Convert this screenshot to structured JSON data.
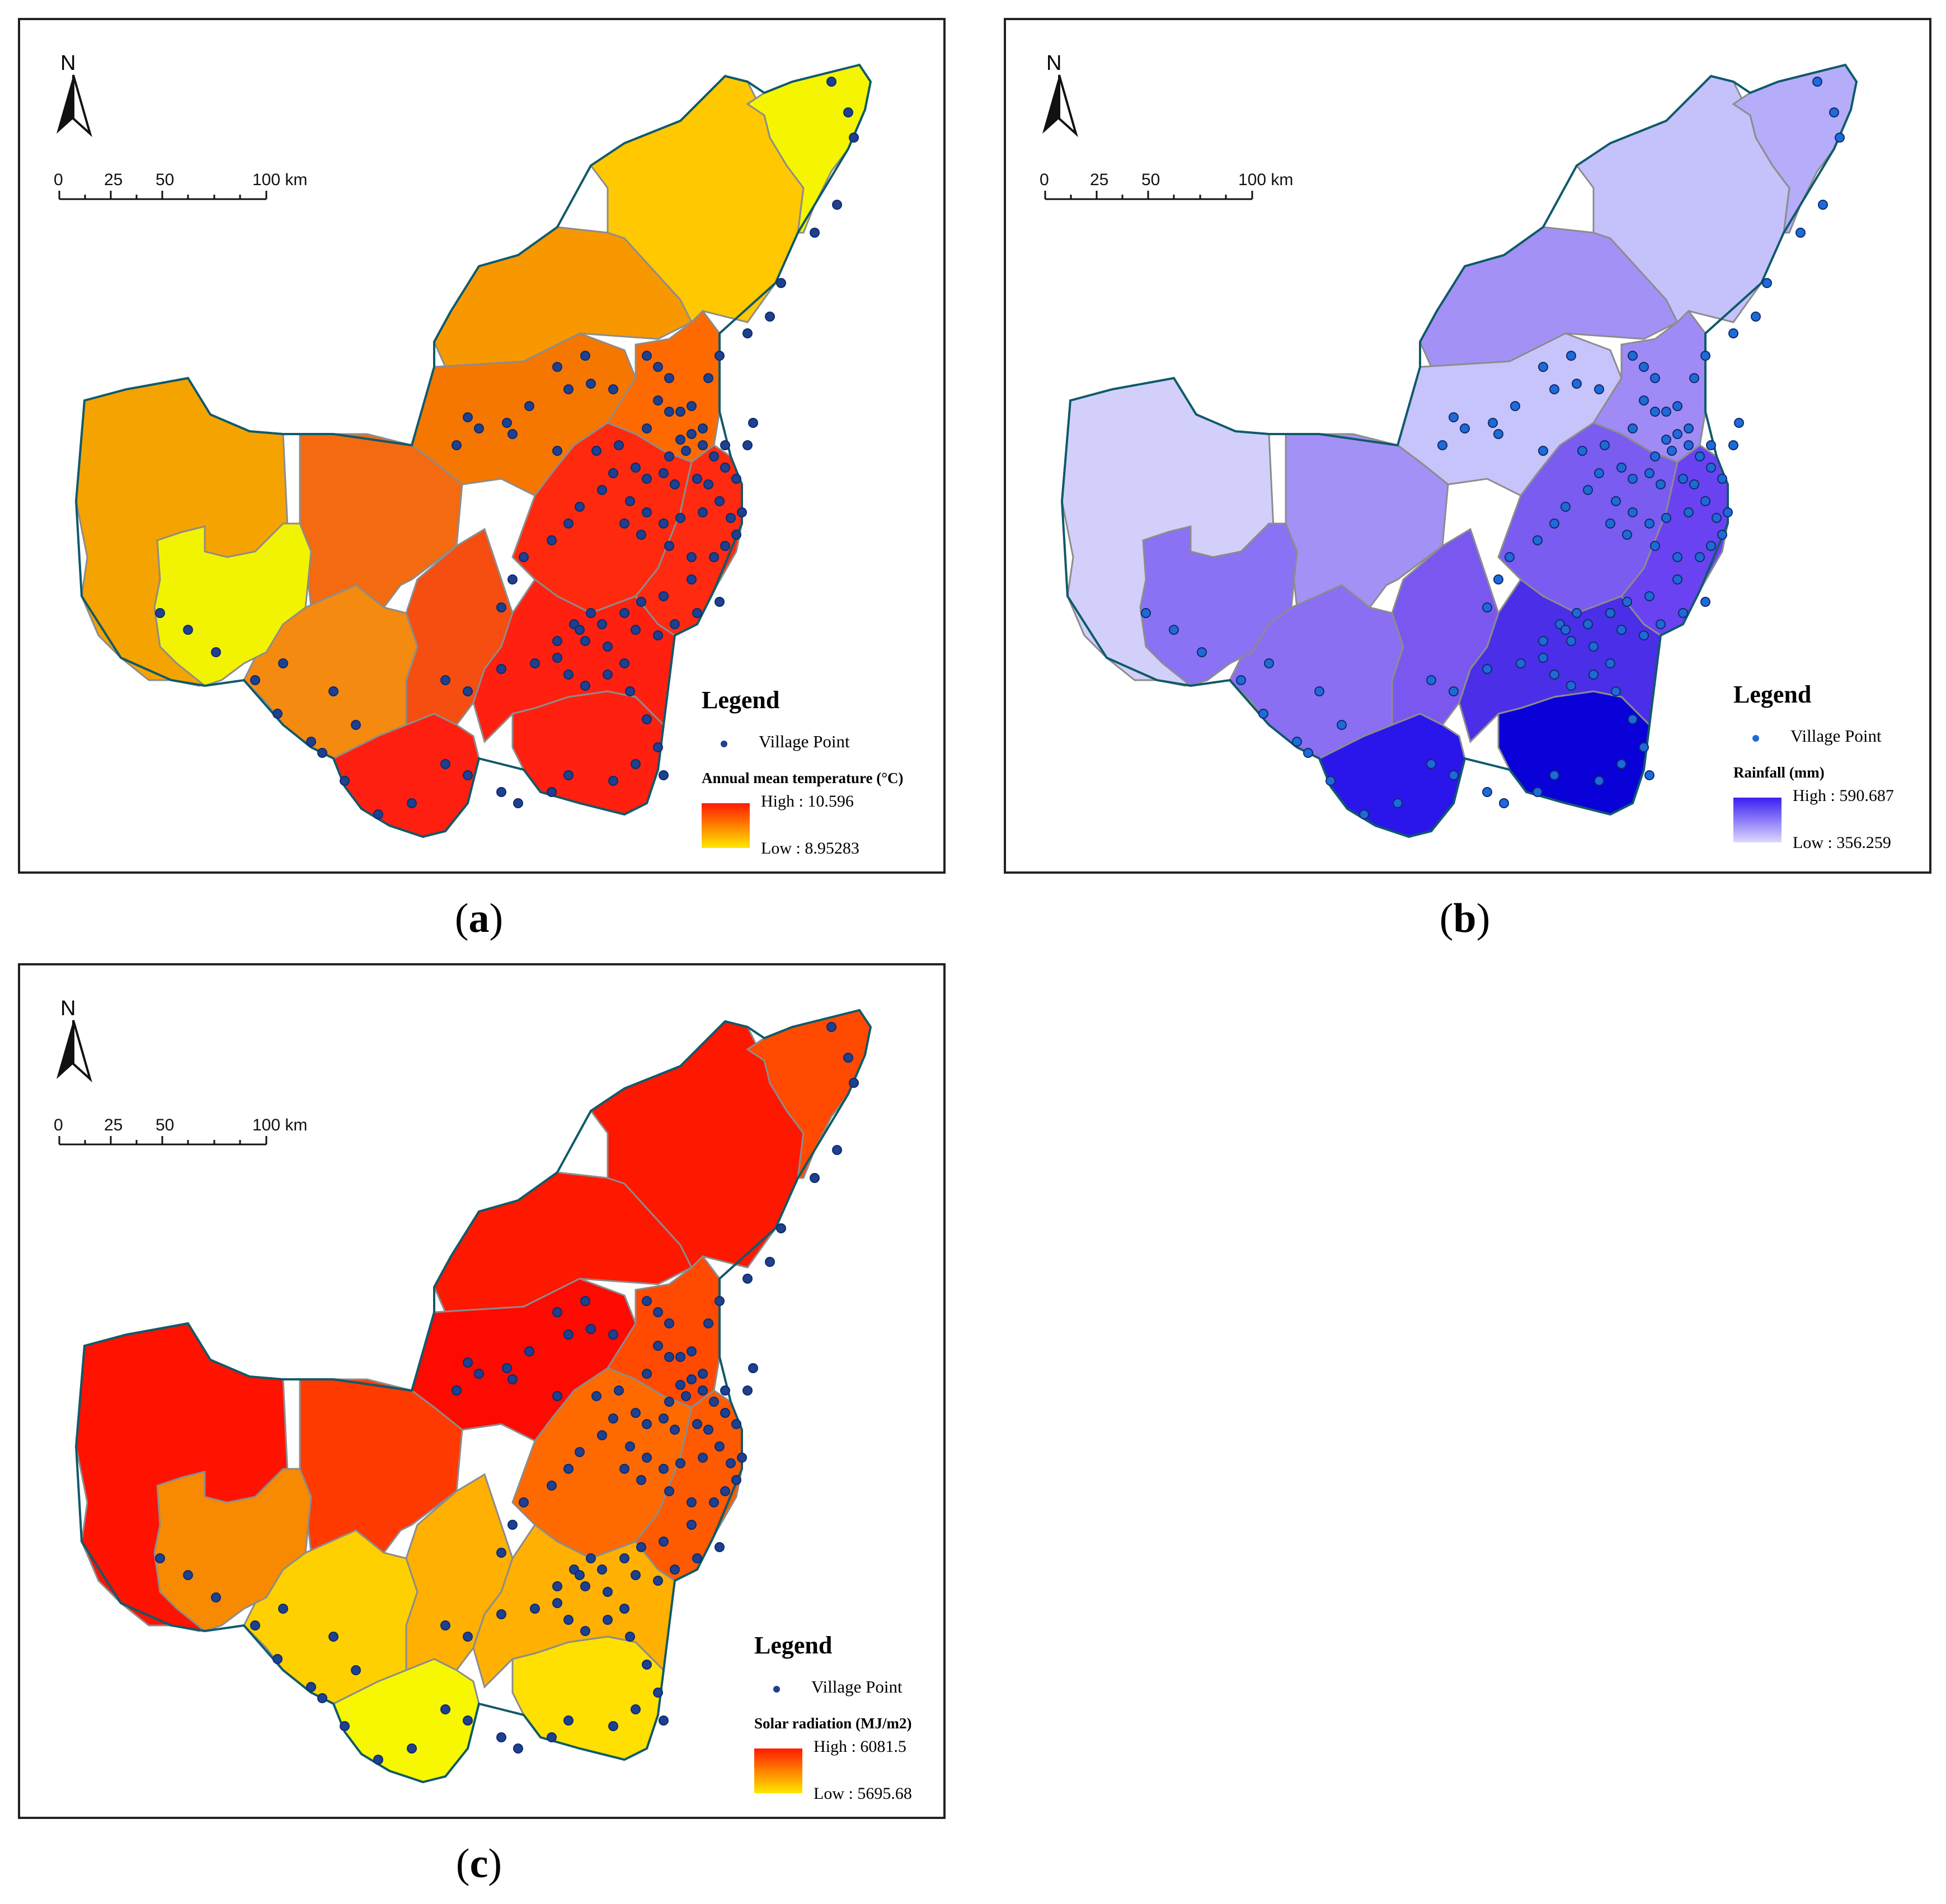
{
  "panels": [
    {
      "caption_letter": "a",
      "north_label": "N",
      "scale_labels": [
        "0",
        "25",
        "50",
        "100 km"
      ],
      "legend_title": "Legend",
      "point_label": "Village Point",
      "point_color": "#1f3f8f",
      "variable_title": "Annual mean temperature (°C)",
      "high_label": "High : 10.596",
      "low_label": "Low : 8.95283",
      "ramp_high_color": "#ff1a00",
      "ramp_low_color": "#ffe800",
      "region_colors": {
        "west": "#f5a300",
        "west_inner": "#f2f300",
        "west_south": "#f58a10",
        "mid_north": "#f79800",
        "north": "#ffc800",
        "ne_tip": "#f5f500",
        "center_n": "#f57700",
        "center_w": "#f36a10",
        "east_n": "#ff6a00",
        "center": "#ff2a0e",
        "east": "#ff2a10",
        "south_w": "#f54e10",
        "south": "#ff1f10",
        "south_e": "#ff2010",
        "south_c": "#ff2010"
      }
    },
    {
      "caption_letter": "b",
      "north_label": "N",
      "scale_labels": [
        "0",
        "25",
        "50",
        "100 km"
      ],
      "legend_title": "Legend",
      "point_label": "Village Point",
      "point_color": "#1f6ad8",
      "variable_title": "Rainfall (mm)",
      "high_label": "High : 590.687",
      "low_label": "Low : 356.259",
      "ramp_high_color": "#3a1ef0",
      "ramp_low_color": "#dcd8ff",
      "region_colors": {
        "west": "#d2d0fa",
        "west_inner": "#8b71f3",
        "west_south": "#8a6ff2",
        "mid_north": "#a391f6",
        "north": "#c5c1fb",
        "ne_tip": "#b5adfa",
        "center_n": "#c7c3fb",
        "center_w": "#a391f6",
        "east_n": "#a08af5",
        "center": "#7a5cf0",
        "east": "#6a42f2",
        "south_w": "#7a58ef",
        "south": "#2a16ea",
        "south_e": "#0a00d8",
        "south_c": "#4a2ee8"
      }
    },
    {
      "caption_letter": "c",
      "north_label": "N",
      "scale_labels": [
        "0",
        "25",
        "50",
        "100 km"
      ],
      "legend_title": "Legend",
      "point_label": "Village Point",
      "point_color": "#1f3f8f",
      "variable_title": "Solar radiation (MJ/m2)",
      "high_label": "High : 6081.5",
      "low_label": "Low : 5695.68",
      "ramp_high_color": "#ff1a00",
      "ramp_low_color": "#ffe800",
      "region_colors": {
        "west": "#ff1200",
        "west_inner": "#f78a00",
        "west_south": "#ffd000",
        "mid_north": "#ff1800",
        "north": "#ff1800",
        "ne_tip": "#ff4a00",
        "center_n": "#ff0a00",
        "center_w": "#ff3a00",
        "east_n": "#ff4a00",
        "center": "#ff6a00",
        "east": "#ff5a00",
        "south_w": "#ffb000",
        "south": "#f7f700",
        "south_e": "#ffe000",
        "south_c": "#ffb000"
      }
    }
  ]
}
